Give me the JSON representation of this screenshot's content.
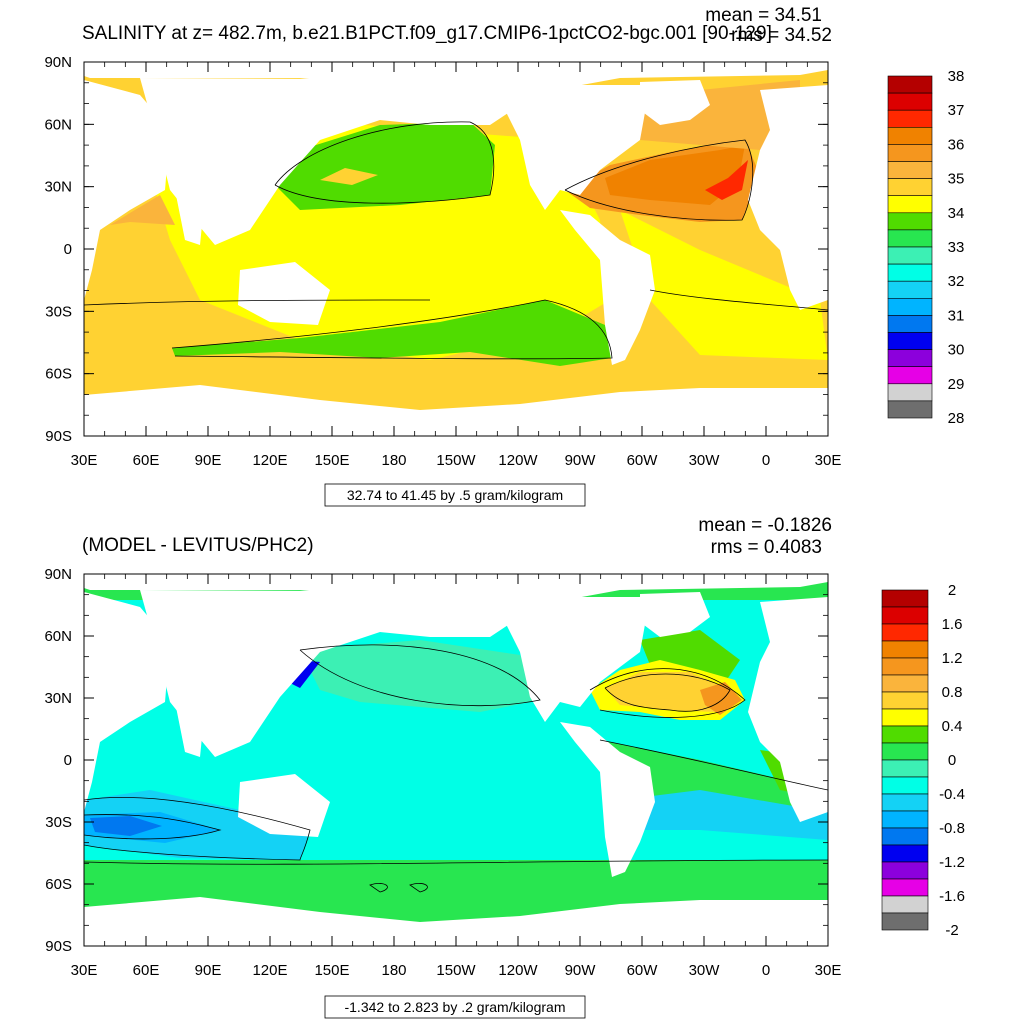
{
  "panels": [
    {
      "title": "SALINITY at z= 482.7m, b.e21.B1PCT.f09_g17.CMIP6-1pctCO2-bgc.001 [90-129]",
      "mean": "mean = 34.51",
      "rms": "rms = 34.52",
      "info": "32.74 to 41.45 by .5 gram/kilogram",
      "colorbar_labels": [
        "38",
        "37",
        "36",
        "35",
        "34",
        "33",
        "32",
        "31",
        "30",
        "29",
        "28"
      ],
      "colorbar_colors": [
        "#b40000",
        "#dc0000",
        "#ff2800",
        "#f08200",
        "#f5961e",
        "#fab43c",
        "#ffd232",
        "#ffff00",
        "#50dc00",
        "#28e650",
        "#3cf0b4",
        "#00ffe6",
        "#14d2f5",
        "#00b4ff",
        "#0078f0",
        "#0000f0",
        "#8c00dc",
        "#e600e6",
        "#d2d2d2",
        "#6e6e6e"
      ]
    },
    {
      "title": "(MODEL - LEVITUS/PHC2)",
      "mean": "mean = -0.1826",
      "rms": "rms = 0.4083",
      "info": "-1.342 to 2.823 by .2 gram/kilogram",
      "colorbar_labels": [
        "2",
        "1.6",
        "1.2",
        "0.8",
        "0.4",
        "0",
        "-0.4",
        "-0.8",
        "-1.2",
        "-1.6",
        "-2"
      ],
      "colorbar_colors": [
        "#b40000",
        "#dc0000",
        "#ff2800",
        "#f08200",
        "#f5961e",
        "#fab43c",
        "#ffd232",
        "#ffff00",
        "#50dc00",
        "#28e650",
        "#3cf0b4",
        "#00ffe6",
        "#14d2f5",
        "#00b4ff",
        "#0078f0",
        "#0000f0",
        "#8c00dc",
        "#e600e6",
        "#d2d2d2",
        "#6e6e6e"
      ]
    }
  ],
  "axes": {
    "lat_labels": [
      "90N",
      "60N",
      "30N",
      "0",
      "30S",
      "60S",
      "90S"
    ],
    "lon_labels": [
      "30E",
      "60E",
      "90E",
      "120E",
      "150E",
      "180",
      "150W",
      "120W",
      "90W",
      "60W",
      "30W",
      "0",
      "30E"
    ]
  },
  "chart_data": [
    {
      "type": "heatmap",
      "title": "SALINITY at z= 482.7m, b.e21.B1PCT.f09_g17.CMIP6-1pctCO2-bgc.001 [90-129]",
      "mean": 34.51,
      "rms": 34.52,
      "units": "gram/kilogram",
      "data_min": 32.74,
      "data_max": 41.45,
      "contour_interval": 0.5,
      "colorbar_range": [
        28,
        38
      ],
      "xlim": [
        "30E",
        "30E"
      ],
      "ylim": [
        "90S",
        "90N"
      ]
    },
    {
      "type": "heatmap",
      "title": "(MODEL - LEVITUS/PHC2)",
      "mean": -0.1826,
      "rms": 0.4083,
      "units": "gram/kilogram",
      "data_min": -1.342,
      "data_max": 2.823,
      "contour_interval": 0.2,
      "colorbar_range": [
        -2,
        2
      ],
      "xlim": [
        "30E",
        "30E"
      ],
      "ylim": [
        "90S",
        "90N"
      ]
    }
  ]
}
